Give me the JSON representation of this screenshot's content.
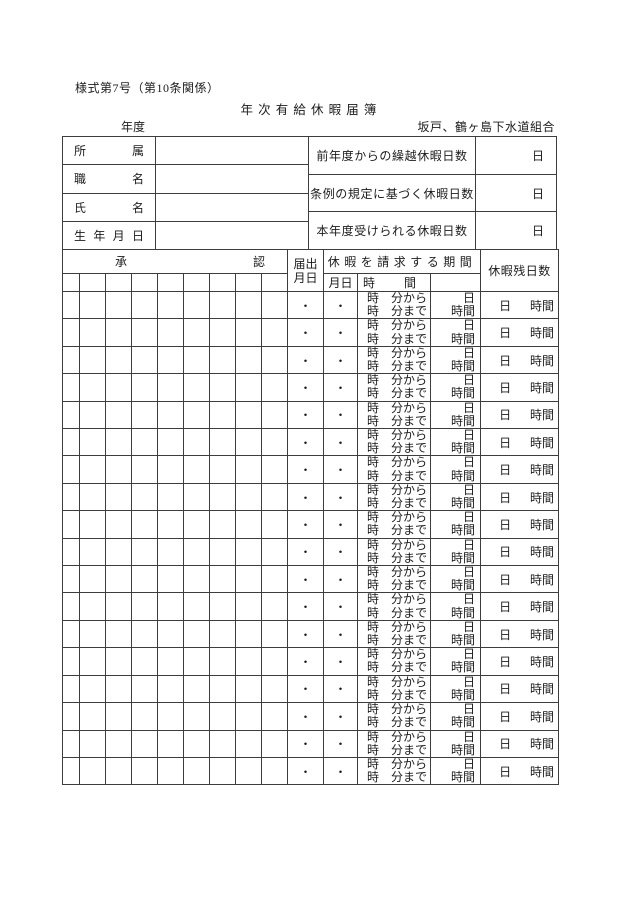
{
  "document": {
    "form_note": "様式第7号（第10条関係）",
    "title": "年 次 有 給 休 暇 届 簿",
    "fiscal_year_label": "年度",
    "organization": "坂戸、鶴ヶ島下水道組合"
  },
  "info_table": {
    "left_rows": [
      {
        "label_chars": [
          "所",
          "属"
        ],
        "value": ""
      },
      {
        "label_chars": [
          "職",
          "名"
        ],
        "value": ""
      },
      {
        "label_chars": [
          "氏",
          "名"
        ],
        "value": ""
      },
      {
        "label_chars": [
          "生",
          "年",
          "月",
          "日"
        ],
        "value": ""
      }
    ],
    "right_rows": [
      {
        "label": "前年度からの繰越休暇日数",
        "unit": "日",
        "value": ""
      },
      {
        "label": "条例の規定に基づく休暇日数",
        "unit": "日",
        "value": ""
      },
      {
        "label": "本年度受けられる休暇日数",
        "unit": "日",
        "value": ""
      }
    ]
  },
  "main_table": {
    "approval_header_chars": [
      "承",
      "認"
    ],
    "approval_subcolumns": 9,
    "notify_date_header_lines": [
      "届出",
      "月日"
    ],
    "period_header": "休暇を請求する期間",
    "date_subheader": "月日",
    "time_subheader_chars": [
      "時",
      "間"
    ],
    "remaining_header": "休暇残日数",
    "rows_count": 18,
    "row_template": {
      "notify_date": "・",
      "date": "・",
      "time_lines": [
        [
          "時",
          "分から"
        ],
        [
          "時",
          "分まで"
        ]
      ],
      "duration_lines": [
        "日",
        "時間"
      ],
      "remaining_parts": [
        "日",
        "時間"
      ]
    }
  }
}
